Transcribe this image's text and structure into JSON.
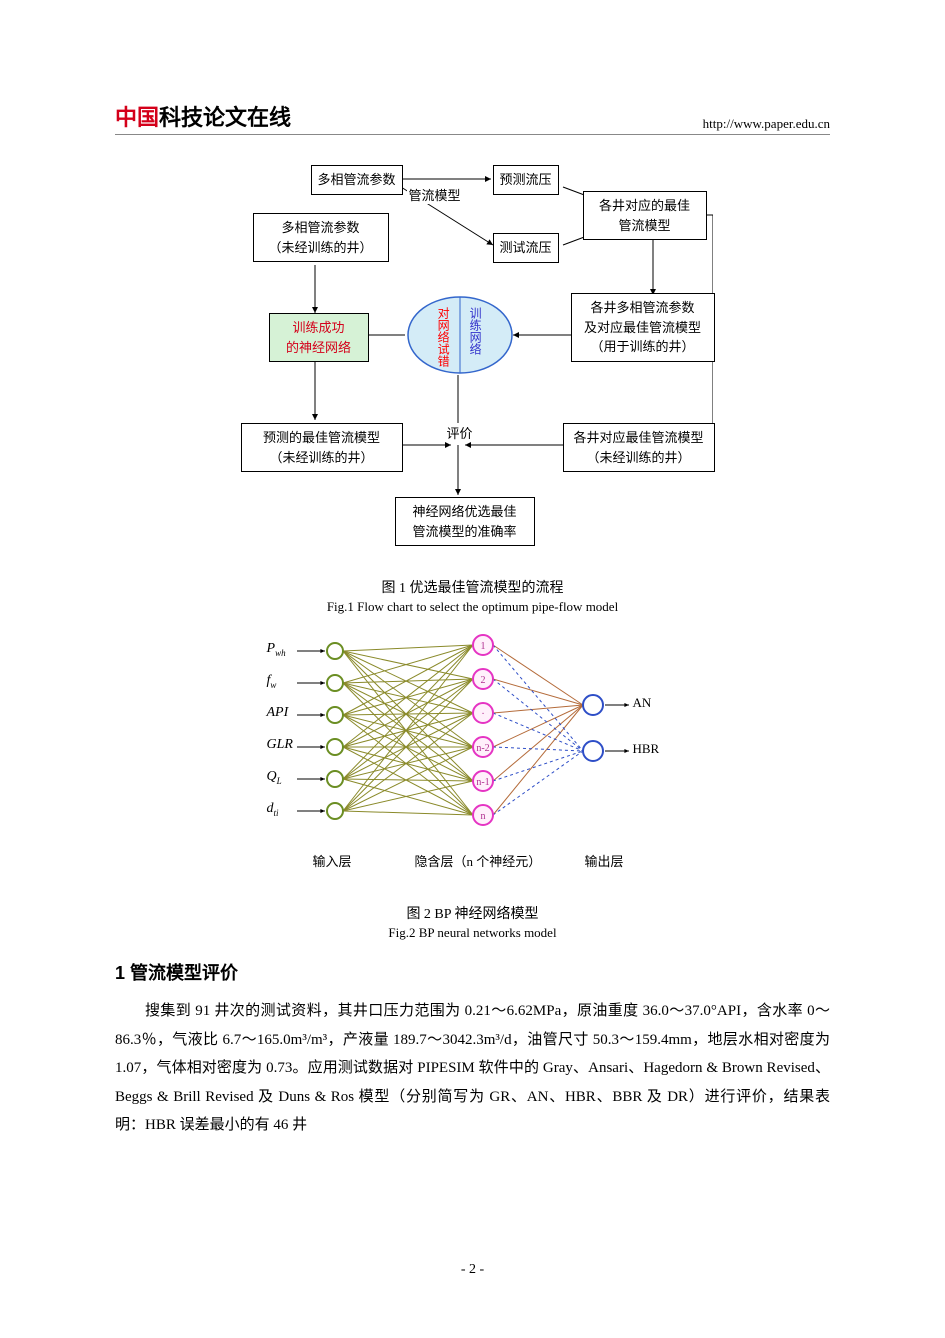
{
  "header": {
    "logo_red": "中国",
    "logo_rest": "科技论文在线",
    "url": "http://www.paper.edu.cn"
  },
  "fig1": {
    "boxes": {
      "b1": "多相管流参数",
      "b2": "预测流压",
      "b3": "各井对应的最佳\n管流模型",
      "b4": "多相管流参数\n（未经训练的井）",
      "b5": "测试流压",
      "b6": "训练成功\n的神经网络",
      "b7": "各井多相管流参数\n及对应最佳管流模型\n（用于训练的井）",
      "b8": "预测的最佳管流模型\n（未经训练的井）",
      "b9": "各井对应最佳管流模型\n（未经训练的井）",
      "b10": "神经网络优选最佳\n管流模型的准确率"
    },
    "labels": {
      "l1": "管流模型",
      "l2": "评价"
    },
    "ellipse": {
      "left": "对网络试错",
      "right": "训练网络",
      "left_color": "#ff0000",
      "right_color": "#3333cc",
      "fill": "#d4ecf7",
      "stroke": "#3366cc"
    },
    "caption_zh": "图 1 优选最佳管流模型的流程",
    "caption_en": "Fig.1 Flow chart to select the optimum pipe-flow model"
  },
  "fig2": {
    "inputs": [
      "P",
      "f",
      "API",
      "GLR",
      "Q",
      "d"
    ],
    "input_subs": [
      "wh",
      "w",
      "",
      "",
      "L",
      "ti"
    ],
    "hidden_labels": [
      "1",
      "2",
      "·",
      "n-2",
      "n-1",
      "n"
    ],
    "outputs": [
      "AN",
      "HBR"
    ],
    "layer_labels": {
      "in": "输入层",
      "hid": "隐含层（n 个神经元）",
      "out": "输出层"
    },
    "colors": {
      "line_in": "#8a8a2a",
      "line_out": "#b46b3a",
      "line_dash": "#2e4ec7",
      "input_node_stroke": "#6b8e23",
      "hidden_node_stroke": "#e534c3",
      "hidden_node_fill": "#fff0fb",
      "output_node_stroke": "#2e4ec7",
      "output_node_fill": "#ffffff",
      "arrow": "#000000"
    },
    "caption_zh": "图 2 BP 神经网络模型",
    "caption_en": "Fig.2 BP neural networks model"
  },
  "section": {
    "heading": "1  管流模型评价",
    "para": "搜集到 91 井次的测试资料，其井口压力范围为 0.21～6.62MPa，原油重度 36.0～37.0°API，含水率 0～86.3％，气液比 6.7～165.0m³/m³，产液量 189.7～3042.3m³/d，油管尺寸 50.3～159.4mm，地层水相对密度为 1.07，气体相对密度为 0.73。应用测试数据对 PIPESIM 软件中的 Gray、Ansari、Hagedorn & Brown Revised、Beggs & Brill Revised 及 Duns & Ros 模型（分别简写为 GR、AN、HBR、BBR 及 DR）进行评价，结果表明：HBR 误差最小的有 46 井"
  },
  "footer": "- 2 -"
}
